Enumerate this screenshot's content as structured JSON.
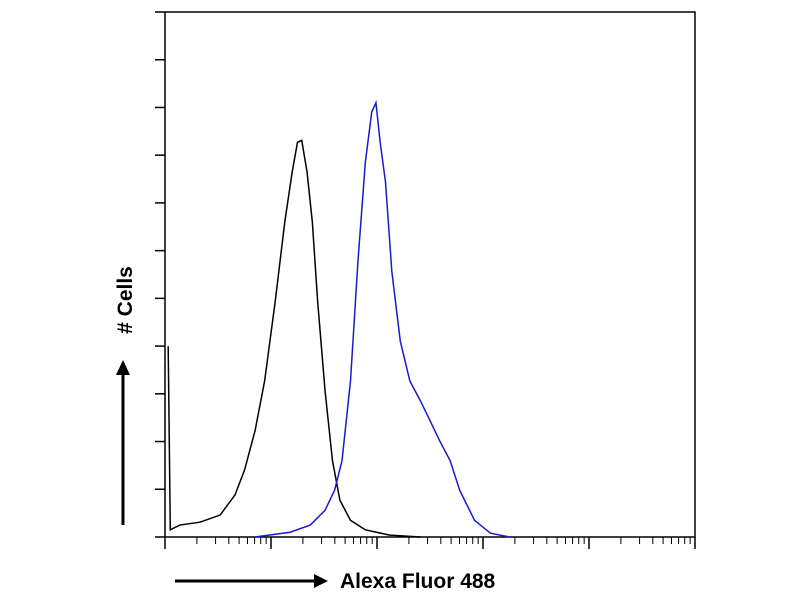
{
  "chart_data": {
    "type": "line",
    "x_label": "Alexa Fluor 488",
    "y_label": "# Cells",
    "xlim": [
      0,
      5
    ],
    "xticks": [
      0,
      1,
      2,
      3,
      4,
      5
    ],
    "ylim": [
      0,
      11
    ],
    "yticks": [
      0,
      1,
      2,
      3,
      4,
      5,
      6,
      7,
      8,
      9,
      10,
      11
    ],
    "series": [
      {
        "color": "#000000",
        "x": [
          0.03,
          0.05,
          0.14,
          0.33,
          0.52,
          0.66,
          0.75,
          0.85,
          0.94,
          1.04,
          1.13,
          1.2,
          1.25,
          1.29,
          1.34,
          1.39,
          1.44,
          1.51,
          1.58,
          1.65,
          1.75,
          1.89,
          2.12,
          2.41
        ],
        "values": [
          4.0,
          0.15,
          0.25,
          0.31,
          0.46,
          0.88,
          1.4,
          2.23,
          3.27,
          4.94,
          6.6,
          7.65,
          8.27,
          8.31,
          7.65,
          6.6,
          4.94,
          3.06,
          1.6,
          0.77,
          0.35,
          0.15,
          0.04,
          0
        ]
      },
      {
        "color": "#1a1acc",
        "x": [
          0.85,
          1.18,
          1.37,
          1.51,
          1.6,
          1.67,
          1.75,
          1.82,
          1.89,
          1.95,
          1.99,
          2.03,
          2.08,
          2.14,
          2.22,
          2.31,
          2.41,
          2.5,
          2.59,
          2.69,
          2.78,
          2.92,
          3.07,
          3.25
        ],
        "values": [
          0,
          0.1,
          0.25,
          0.56,
          0.98,
          1.6,
          3.27,
          5.77,
          7.85,
          8.9,
          9.1,
          8.27,
          7.44,
          5.56,
          4.1,
          3.27,
          2.85,
          2.44,
          2.02,
          1.6,
          0.98,
          0.35,
          0.08,
          0
        ]
      }
    ]
  }
}
